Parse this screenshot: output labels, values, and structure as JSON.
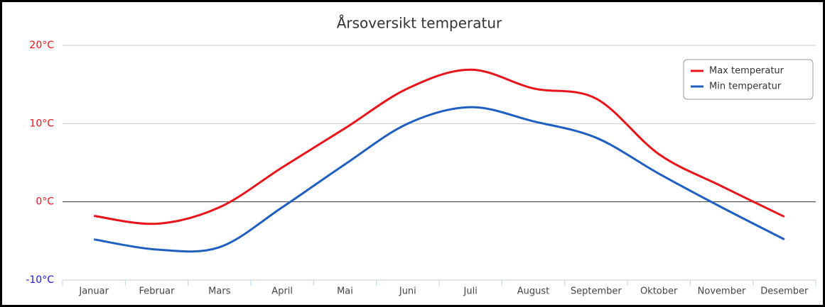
{
  "chart_data": {
    "type": "line",
    "title": "Årsoversikt temperatur",
    "categories": [
      "Januar",
      "Februar",
      "Mars",
      "April",
      "Mai",
      "Juni",
      "Juli",
      "August",
      "September",
      "Oktober",
      "November",
      "Desember"
    ],
    "series": [
      {
        "name": "Max temperatur",
        "color": "#e8141b",
        "values": [
          -1.8,
          -2.8,
          -0.7,
          4.4,
          9.4,
          14.5,
          16.9,
          14.5,
          13.2,
          6.1,
          2.0,
          -1.9
        ]
      },
      {
        "name": "Min temperatur",
        "color": "#1f5fbf",
        "values": [
          -4.8,
          -6.1,
          -5.8,
          -0.7,
          4.8,
          10.0,
          12.1,
          10.3,
          8.2,
          3.6,
          -0.7,
          -4.8
        ]
      }
    ],
    "ylim": [
      -10,
      20
    ],
    "yticks": [
      {
        "value": -10,
        "label": "-10°C"
      },
      {
        "value": 0,
        "label": "0°C"
      },
      {
        "value": 10,
        "label": "10°C"
      },
      {
        "value": 20,
        "label": "20°C"
      }
    ],
    "ytick_colors": [
      "#1a1ad6",
      "#e8141b",
      "#e8141b",
      "#e8141b"
    ],
    "grid": true,
    "zero_line_color": "#333333",
    "legend": "top-right",
    "smooth": true
  }
}
